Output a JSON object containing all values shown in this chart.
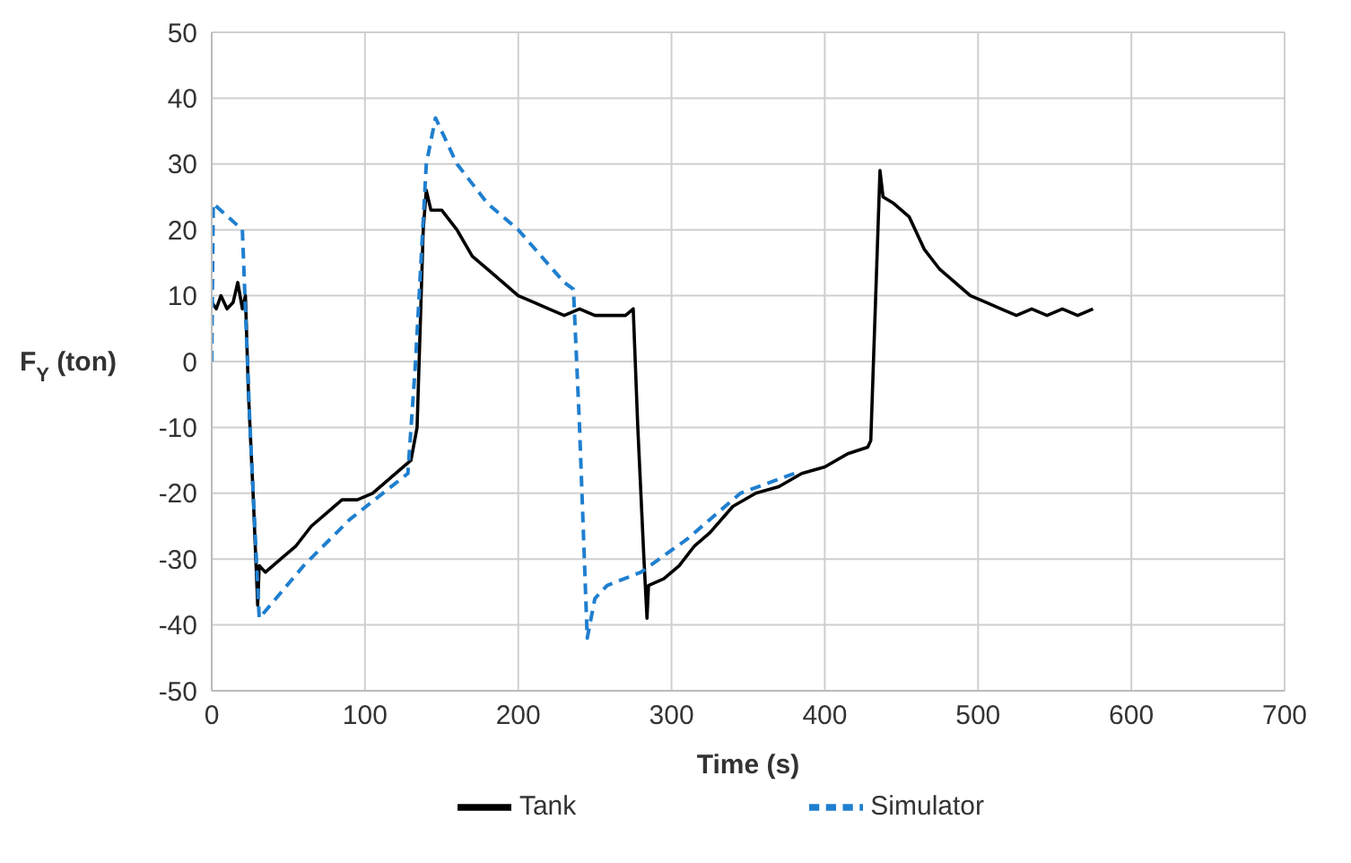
{
  "chart_data": {
    "type": "line",
    "xlabel": "Time (s)",
    "ylabel": "F$_{Y}$ (ton)",
    "xlim": [
      0,
      700
    ],
    "xticks": [
      0,
      100,
      200,
      300,
      400,
      500,
      600,
      700
    ],
    "ylim": [
      -50,
      50
    ],
    "yticks": [
      -50,
      -40,
      -30,
      -20,
      -10,
      0,
      10,
      20,
      30,
      40,
      50
    ],
    "grid": true,
    "legend": "bottom",
    "marker": "none",
    "series": [
      {
        "name": "Tank",
        "color": "#000000",
        "line_style": "solid",
        "x": [
          0,
          3,
          6,
          10,
          14,
          17,
          20,
          22,
          24,
          27,
          30,
          31,
          35,
          45,
          55,
          65,
          75,
          85,
          95,
          105,
          115,
          125,
          130,
          134,
          138,
          140,
          143,
          150,
          160,
          170,
          180,
          190,
          200,
          210,
          220,
          230,
          240,
          250,
          260,
          270,
          275,
          278,
          282,
          284,
          285,
          295,
          305,
          315,
          325,
          340,
          355,
          370,
          385,
          400,
          415,
          428,
          430,
          436,
          438,
          445,
          455,
          465,
          475,
          485,
          495,
          505,
          515,
          525,
          535,
          545,
          555,
          565,
          575
        ],
        "values": [
          9,
          8,
          10,
          8,
          9,
          12,
          8,
          10,
          -5,
          -20,
          -37,
          -31,
          -32,
          -30,
          -28,
          -25,
          -23,
          -21,
          -21,
          -20,
          -18,
          -16,
          -15,
          -10,
          20,
          26,
          23,
          23,
          20,
          16,
          14,
          12,
          10,
          9,
          8,
          7,
          8,
          7,
          7,
          7,
          8,
          -10,
          -30,
          -39,
          -34,
          -33,
          -31,
          -28,
          -26,
          -22,
          -20,
          -19,
          -17,
          -16,
          -14,
          -13,
          -12,
          29,
          25,
          24,
          22,
          17,
          14,
          12,
          10,
          9,
          8,
          7,
          8,
          7,
          8,
          7,
          8
        ]
      },
      {
        "name": "Simulator",
        "color": "#1f7fcf",
        "line_style": "dashed",
        "x": [
          0,
          1,
          20,
          25,
          31,
          60,
          90,
          128,
          133,
          140,
          146,
          160,
          180,
          200,
          230,
          236,
          240,
          245,
          250,
          258,
          280,
          310,
          345,
          380
        ],
        "values": [
          0,
          24,
          20,
          -10,
          -39,
          -31,
          -24,
          -17,
          0,
          30,
          37,
          30,
          24,
          20,
          12,
          11,
          -10,
          -42,
          -36,
          -34,
          -32,
          -27,
          -20,
          -17
        ]
      }
    ]
  }
}
